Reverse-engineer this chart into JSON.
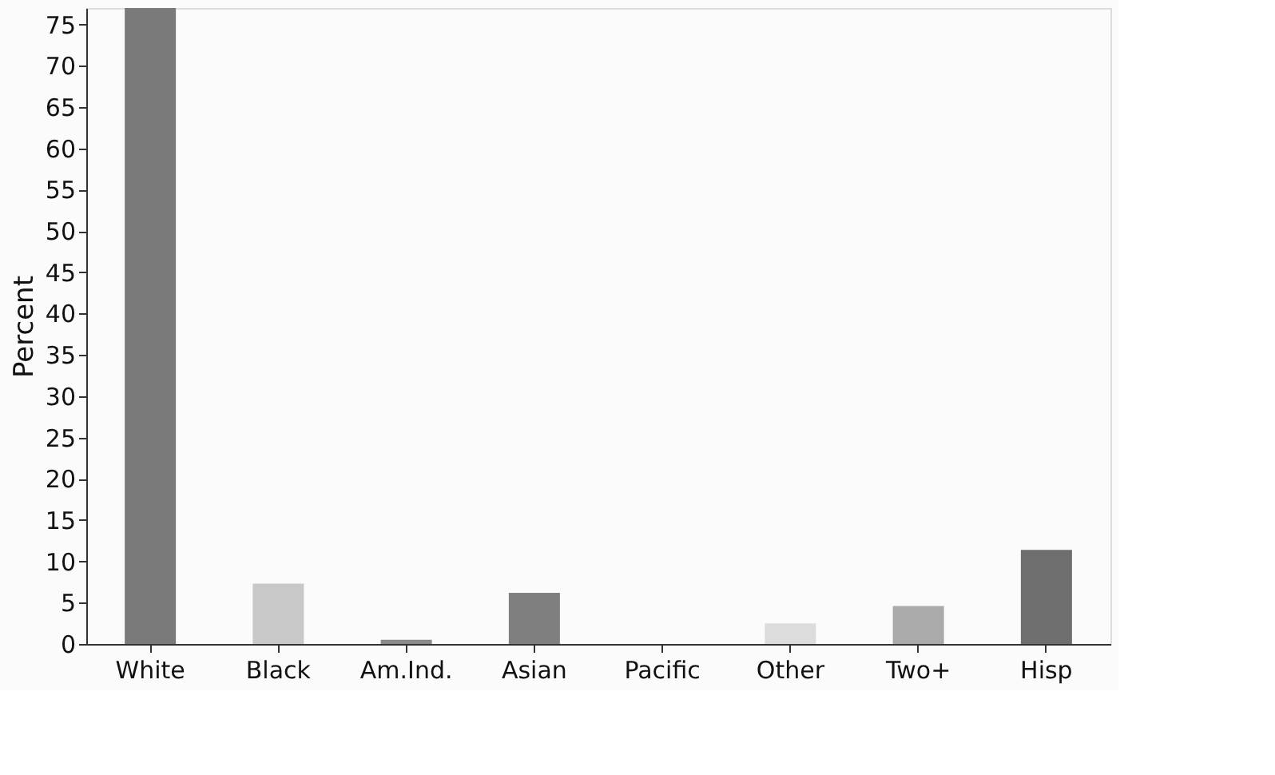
{
  "chart_data": {
    "type": "bar",
    "ylabel": "Percent",
    "categories": [
      "White",
      "Black",
      "Am.Ind.",
      "Asian",
      "Pacific",
      "Other",
      "Two+",
      "Hisp"
    ],
    "values": [
      77,
      7.3,
      0.5,
      6.2,
      0,
      2.5,
      4.6,
      11.4
    ],
    "colors": [
      "#7a7a7a",
      "#c8c8c8",
      "#8a8a8a",
      "#7f7f7f",
      "#9a9a9a",
      "#dcdcdc",
      "#aaaaaa",
      "#6e6e6e"
    ],
    "ylim": [
      0,
      77
    ],
    "yticks": [
      0,
      5,
      10,
      15,
      20,
      25,
      30,
      35,
      40,
      45,
      50,
      55,
      60,
      65,
      70,
      75
    ],
    "grid": false
  }
}
